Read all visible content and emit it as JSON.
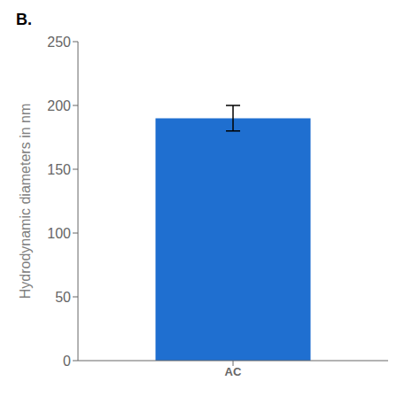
{
  "chart_data": {
    "type": "bar",
    "title": "B.",
    "categories": [
      "AC"
    ],
    "values": [
      190
    ],
    "errors": [
      10
    ],
    "color": "#1F6FD0",
    "ylabel": "Hydrodynamic diameters  in nm",
    "ylim": [
      0,
      250
    ],
    "yticks": [
      0,
      50,
      100,
      150,
      200,
      250
    ],
    "grid": false
  }
}
